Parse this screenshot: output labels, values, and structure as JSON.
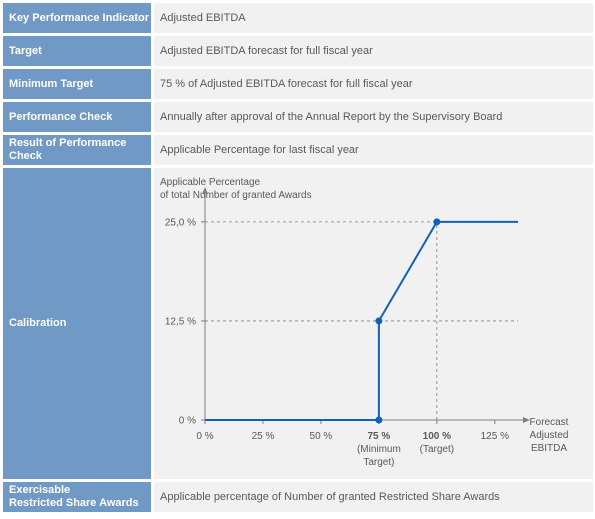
{
  "rows": [
    {
      "label": "Key Performance Indicator",
      "value": "Adjusted EBITDA"
    },
    {
      "label": "Target",
      "value": "Adjusted EBITDA forecast for full fiscal year"
    },
    {
      "label": "Minimum Target",
      "value": "75 % of Adjusted EBITDA forecast for full fiscal year"
    },
    {
      "label": "Performance Check",
      "value": "Annually after approval of the Annual Report by the Supervisory Board"
    },
    {
      "label": "Result of Performance Check",
      "value": "Applicable Percentage for last fiscal year"
    },
    {
      "label": "Calibration",
      "value": ""
    },
    {
      "label_line1": "Exercisable",
      "label_line2": "Restricted Share Awards",
      "value": "Applicable percentage of Number of granted Restricted Share Awards"
    }
  ],
  "chart_data": {
    "type": "line",
    "ylabel_line1": "Applicable Percentage",
    "ylabel_line2": "of total Number of granted Awards",
    "xlabel_lines": [
      "Forecast",
      "Adjusted",
      "EBITDA"
    ],
    "x_ticks": [
      {
        "value": 0,
        "label": "0 %"
      },
      {
        "value": 25,
        "label": "25 %"
      },
      {
        "value": 50,
        "label": "50 %"
      },
      {
        "value": 75,
        "label": "75 %",
        "sub1": "(Minimum",
        "sub2": "Target)",
        "bold": true
      },
      {
        "value": 100,
        "label": "100 %",
        "sub1": "(Target)",
        "bold": true
      },
      {
        "value": 125,
        "label": "125 %"
      }
    ],
    "y_ticks": [
      {
        "value": 0,
        "label": "0 %"
      },
      {
        "value": 12.5,
        "label": "12,5 %"
      },
      {
        "value": 25,
        "label": "25,0 %"
      }
    ],
    "xlim": [
      0,
      135
    ],
    "ylim": [
      0,
      27
    ],
    "series": [
      {
        "points": [
          [
            0,
            0
          ],
          [
            75,
            0
          ],
          [
            75,
            12.5
          ],
          [
            100,
            25
          ],
          [
            135,
            25
          ]
        ]
      }
    ],
    "markers": [
      [
        75,
        0
      ],
      [
        75,
        12.5
      ],
      [
        100,
        25
      ]
    ],
    "color": "#0f62b6",
    "reference_lines": [
      {
        "from": [
          0,
          25
        ],
        "to": [
          100,
          25
        ]
      },
      {
        "from": [
          0,
          12.5
        ],
        "to": [
          135,
          12.5
        ]
      },
      {
        "from": [
          100,
          0
        ],
        "to": [
          100,
          25
        ]
      }
    ]
  }
}
